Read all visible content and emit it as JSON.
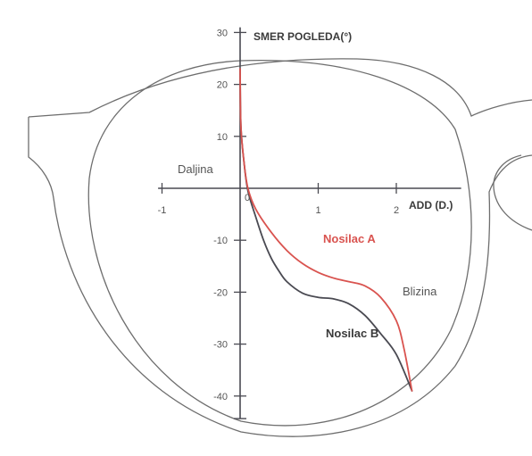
{
  "chart_data": {
    "type": "line",
    "xlabel": "ADD (D.)",
    "ylabel": "SMER POGLEDA(°)",
    "xlim": [
      -1.05,
      2.83
    ],
    "ylim": [
      -44,
      31
    ],
    "x_ticks": [
      -1,
      1,
      2
    ],
    "x_tick_labels": [
      "-1",
      "1",
      "2"
    ],
    "x_zero_label": "0",
    "y_ticks": [
      30,
      20,
      10,
      -10,
      -20,
      -30,
      -40
    ],
    "y_tick_labels": [
      "30",
      "20",
      "10",
      "-10",
      "-20",
      "-30",
      "-40"
    ],
    "grid": false,
    "legend": "none",
    "series": [
      {
        "name": "Nosilac A",
        "color": "#d9534f",
        "points": [
          [
            0.0,
            23.0
          ],
          [
            0.01,
            12.0
          ],
          [
            0.05,
            5.0
          ],
          [
            0.1,
            0.0
          ],
          [
            0.2,
            -4.0
          ],
          [
            0.4,
            -8.5
          ],
          [
            0.6,
            -12.0
          ],
          [
            0.8,
            -14.5
          ],
          [
            1.0,
            -16.2
          ],
          [
            1.2,
            -17.3
          ],
          [
            1.4,
            -18.0
          ],
          [
            1.6,
            -18.8
          ],
          [
            1.8,
            -21.0
          ],
          [
            2.0,
            -25.5
          ],
          [
            2.1,
            -31.0
          ],
          [
            2.2,
            -39.0
          ]
        ]
      },
      {
        "name": "Nosilac B",
        "color": "#4a4a52",
        "points": [
          [
            0.0,
            23.0
          ],
          [
            0.01,
            12.0
          ],
          [
            0.05,
            5.0
          ],
          [
            0.1,
            -0.5
          ],
          [
            0.2,
            -5.5
          ],
          [
            0.3,
            -10.0
          ],
          [
            0.4,
            -13.5
          ],
          [
            0.5,
            -16.0
          ],
          [
            0.6,
            -18.0
          ],
          [
            0.8,
            -20.2
          ],
          [
            1.0,
            -21.0
          ],
          [
            1.2,
            -21.3
          ],
          [
            1.4,
            -22.3
          ],
          [
            1.6,
            -24.5
          ],
          [
            1.8,
            -28.0
          ],
          [
            2.0,
            -32.0
          ],
          [
            2.2,
            -39.0
          ]
        ]
      }
    ],
    "annotations": {
      "far": "Daljina",
      "near": "Blizina"
    }
  }
}
